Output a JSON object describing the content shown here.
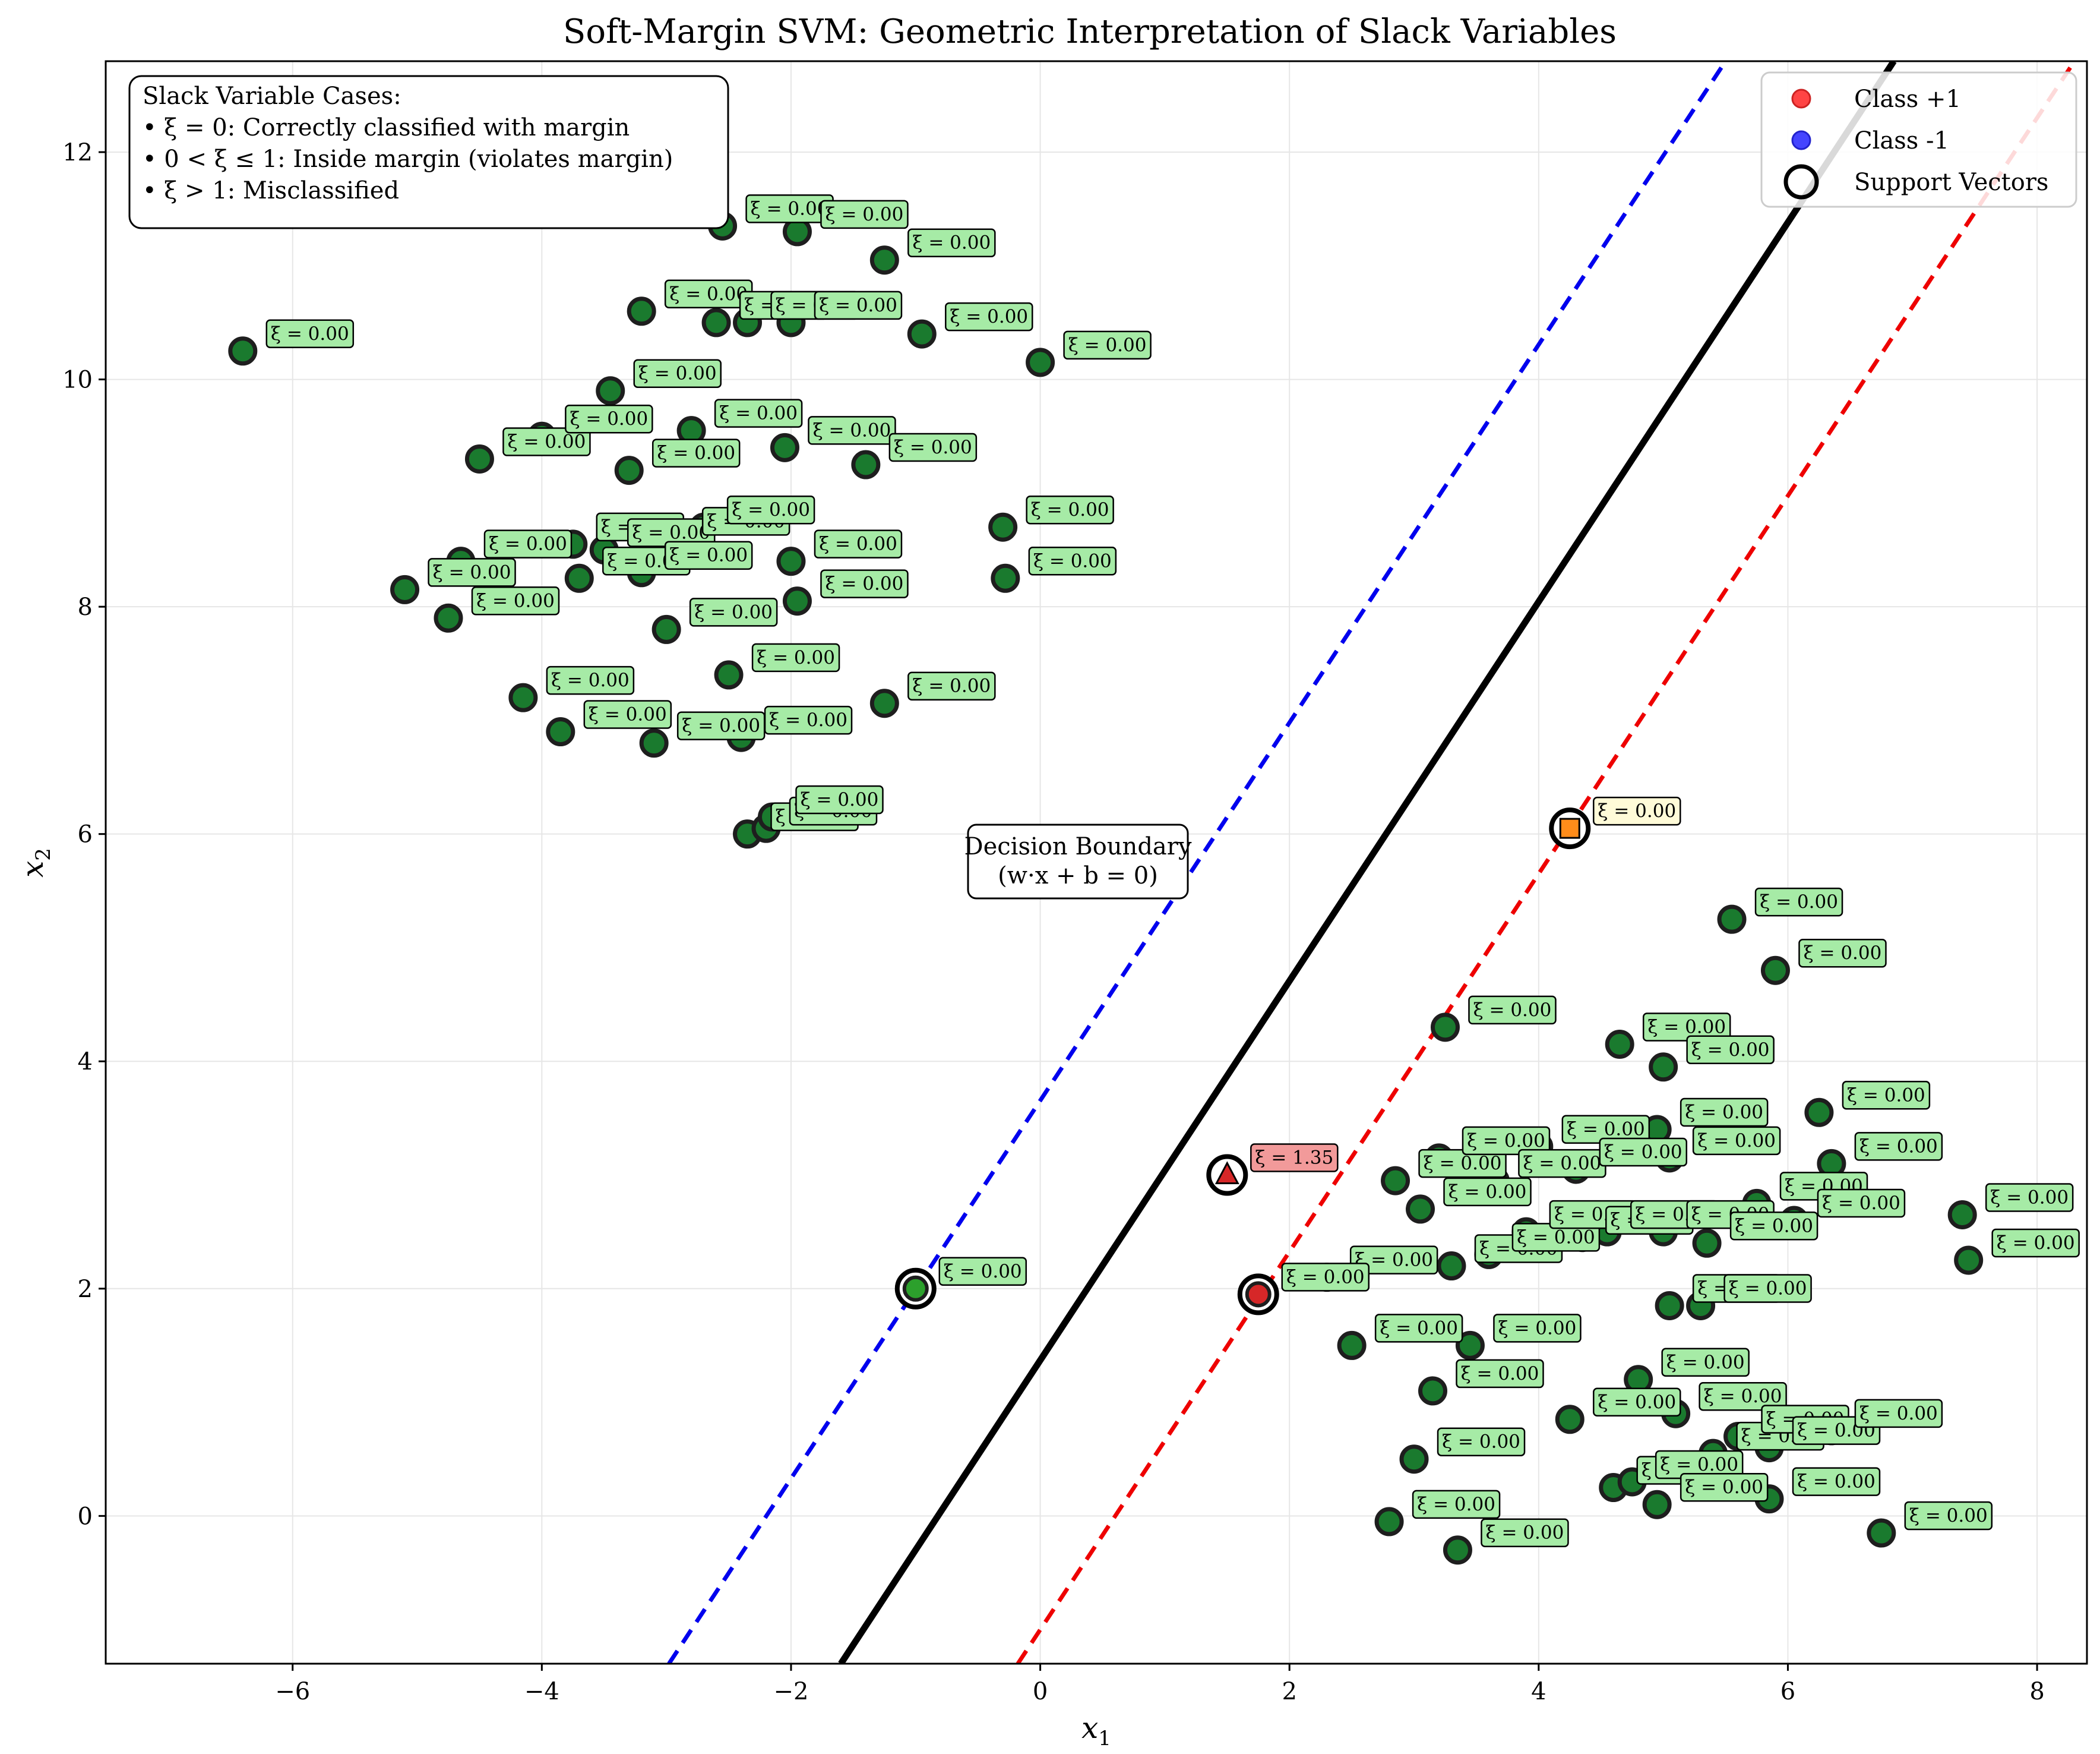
{
  "chart_data": {
    "type": "scatter",
    "title": "Soft-Margin SVM: Geometric Interpretation of Slack Variables",
    "xlabel": "x",
    "xlabel_sub": "1",
    "ylabel": "x",
    "ylabel_sub": "2",
    "xlim": [
      -7.5,
      8.4
    ],
    "ylim": [
      -1.3,
      12.8
    ],
    "xticks": [
      -6,
      -4,
      -2,
      0,
      2,
      4,
      6,
      8
    ],
    "yticks": [
      0,
      2,
      4,
      6,
      8,
      10,
      12
    ],
    "grid": true,
    "legend_position": "top-right",
    "legend": [
      {
        "label": "Class +1",
        "color": "#ff4444",
        "marker": "circle"
      },
      {
        "label": "Class -1",
        "color": "#4444ff",
        "marker": "circle"
      },
      {
        "label": "Support Vectors",
        "color": "#000000",
        "marker": "ring"
      }
    ],
    "info_box": {
      "title": "Slack Variable Cases:",
      "lines": [
        "• ξ = 0: Correctly classified with margin",
        "• 0 < ξ ≤ 1: Inside margin (violates margin)",
        "• ξ > 1: Misclassified"
      ]
    },
    "boundary_label": [
      "Decision Boundary",
      "(w·x + b = 0)"
    ],
    "lines": {
      "decision_boundary": {
        "through": [
          [
            -1.6,
            -1.3
          ],
          [
            6.85,
            12.8
          ]
        ],
        "color": "#000000",
        "style": "solid"
      },
      "margin_class_minus": {
        "through": [
          [
            -2.98,
            -1.3
          ],
          [
            5.5,
            12.8
          ]
        ],
        "color": "#0000ee",
        "style": "dashed"
      },
      "margin_class_plus": {
        "through": [
          [
            -0.18,
            -1.3
          ],
          [
            8.3,
            12.8
          ]
        ],
        "color": "#ee0000",
        "style": "dashed"
      }
    },
    "special_points": [
      {
        "x": -1.0,
        "y": 2.0,
        "slack_label": "ξ = 0.00",
        "label_bg": "#a6eba6",
        "marker": "circle",
        "marker_color": "#2ca02c",
        "support_vector": true
      },
      {
        "x": 1.5,
        "y": 3.0,
        "slack_label": "ξ = 1.35",
        "label_bg": "#f29a9a",
        "marker": "triangle",
        "marker_color": "#d62728",
        "support_vector": true
      },
      {
        "x": 1.75,
        "y": 1.95,
        "slack_label": "ξ = 0.00",
        "label_bg": "#a6eba6",
        "marker": "circle",
        "marker_color": "#d62728",
        "support_vector": true
      },
      {
        "x": 4.25,
        "y": 6.05,
        "slack_label": "ξ = 0.00",
        "label_bg": "#fffbd8",
        "marker": "square",
        "marker_color": "#ff8c1a",
        "support_vector": true
      }
    ],
    "series": [
      {
        "group": "upper-left cluster",
        "slack_label": "ξ = 0.00",
        "marker_color": "#1a7a2e",
        "points": [
          [
            -6.4,
            10.25
          ],
          [
            -5.1,
            8.15
          ],
          [
            -4.75,
            7.9
          ],
          [
            -4.65,
            8.4
          ],
          [
            -4.5,
            9.3
          ],
          [
            -4.15,
            7.2
          ],
          [
            -4.0,
            9.5
          ],
          [
            -3.85,
            6.9
          ],
          [
            -3.75,
            8.55
          ],
          [
            -3.7,
            8.25
          ],
          [
            -3.5,
            8.5
          ],
          [
            -3.45,
            9.9
          ],
          [
            -3.4,
            11.8
          ],
          [
            -3.3,
            9.2
          ],
          [
            -3.2,
            10.6
          ],
          [
            -3.2,
            8.3
          ],
          [
            -3.1,
            6.8
          ],
          [
            -3.0,
            7.8
          ],
          [
            -2.9,
            8.6
          ],
          [
            -2.8,
            9.55
          ],
          [
            -2.7,
            8.7
          ],
          [
            -2.6,
            10.5
          ],
          [
            -2.55,
            11.35
          ],
          [
            -2.5,
            7.4
          ],
          [
            -2.4,
            6.85
          ],
          [
            -2.35,
            10.5
          ],
          [
            -2.35,
            6.0
          ],
          [
            -2.2,
            6.05
          ],
          [
            -2.15,
            6.15
          ],
          [
            -2.05,
            9.4
          ],
          [
            -2.0,
            8.4
          ],
          [
            -2.0,
            10.5
          ],
          [
            -1.95,
            8.05
          ],
          [
            -1.95,
            11.3
          ],
          [
            -1.4,
            9.25
          ],
          [
            -1.25,
            11.05
          ],
          [
            -1.25,
            7.15
          ],
          [
            -0.95,
            10.4
          ],
          [
            -0.3,
            8.7
          ],
          [
            -0.28,
            8.25
          ],
          [
            0.0,
            10.15
          ]
        ]
      },
      {
        "group": "lower-right cluster",
        "slack_label": "ξ = 0.00",
        "marker_color": "#1a7a2e",
        "points": [
          [
            2.3,
            2.1
          ],
          [
            2.5,
            1.5
          ],
          [
            2.8,
            -0.05
          ],
          [
            2.85,
            2.95
          ],
          [
            3.0,
            0.5
          ],
          [
            3.05,
            2.7
          ],
          [
            3.15,
            1.1
          ],
          [
            3.2,
            3.15
          ],
          [
            3.25,
            4.3
          ],
          [
            3.3,
            2.2
          ],
          [
            3.35,
            -0.3
          ],
          [
            3.45,
            1.5
          ],
          [
            3.6,
            2.3
          ],
          [
            3.65,
            2.95
          ],
          [
            3.9,
            2.5
          ],
          [
            4.0,
            3.25
          ],
          [
            4.25,
            0.85
          ],
          [
            4.3,
            3.05
          ],
          [
            4.35,
            2.45
          ],
          [
            4.55,
            2.5
          ],
          [
            4.6,
            0.25
          ],
          [
            4.65,
            4.15
          ],
          [
            4.75,
            0.3
          ],
          [
            4.8,
            1.2
          ],
          [
            4.95,
            3.4
          ],
          [
            4.95,
            0.1
          ],
          [
            5.0,
            3.95
          ],
          [
            5.0,
            2.5
          ],
          [
            5.05,
            1.85
          ],
          [
            5.05,
            3.15
          ],
          [
            5.1,
            0.9
          ],
          [
            5.3,
            1.85
          ],
          [
            5.35,
            2.4
          ],
          [
            5.4,
            0.55
          ],
          [
            5.55,
            5.25
          ],
          [
            5.6,
            0.7
          ],
          [
            5.75,
            2.75
          ],
          [
            5.85,
            0.6
          ],
          [
            5.85,
            0.15
          ],
          [
            5.9,
            4.8
          ],
          [
            6.05,
            2.6
          ],
          [
            6.25,
            3.55
          ],
          [
            6.35,
            3.1
          ],
          [
            6.35,
            0.75
          ],
          [
            6.75,
            -0.15
          ],
          [
            7.4,
            2.65
          ],
          [
            7.45,
            2.25
          ]
        ]
      }
    ]
  }
}
